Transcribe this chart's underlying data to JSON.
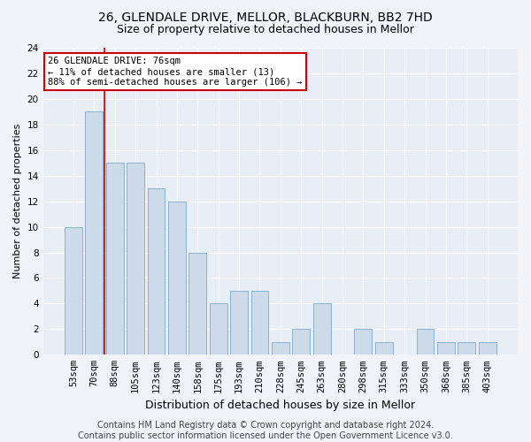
{
  "title1": "26, GLENDALE DRIVE, MELLOR, BLACKBURN, BB2 7HD",
  "title2": "Size of property relative to detached houses in Mellor",
  "xlabel": "Distribution of detached houses by size in Mellor",
  "ylabel": "Number of detached properties",
  "categories": [
    "53sqm",
    "70sqm",
    "88sqm",
    "105sqm",
    "123sqm",
    "140sqm",
    "158sqm",
    "175sqm",
    "193sqm",
    "210sqm",
    "228sqm",
    "245sqm",
    "263sqm",
    "280sqm",
    "298sqm",
    "315sqm",
    "333sqm",
    "350sqm",
    "368sqm",
    "385sqm",
    "403sqm"
  ],
  "values": [
    10,
    19,
    15,
    15,
    13,
    12,
    8,
    4,
    5,
    5,
    1,
    2,
    4,
    0,
    2,
    1,
    0,
    2,
    1,
    1,
    1
  ],
  "bar_color": "#ccdaea",
  "bar_edge_color": "#7aaac8",
  "property_line_x": 1.5,
  "property_line_color": "#cc0000",
  "annotation_text": "26 GLENDALE DRIVE: 76sqm\n← 11% of detached houses are smaller (13)\n88% of semi-detached houses are larger (106) →",
  "annotation_box_color": "#ffffff",
  "annotation_box_edge_color": "#cc0000",
  "ylim": [
    0,
    24
  ],
  "yticks": [
    0,
    2,
    4,
    6,
    8,
    10,
    12,
    14,
    16,
    18,
    20,
    22,
    24
  ],
  "footer1": "Contains HM Land Registry data © Crown copyright and database right 2024.",
  "footer2": "Contains public sector information licensed under the Open Government Licence v3.0.",
  "bg_color": "#e8eef6",
  "fig_color": "#f0f4f8",
  "grid_color": "#ffffff",
  "title1_fontsize": 10,
  "title2_fontsize": 9,
  "xlabel_fontsize": 9,
  "ylabel_fontsize": 8,
  "tick_fontsize": 7.5,
  "ann_fontsize": 7.5,
  "footer_fontsize": 7
}
